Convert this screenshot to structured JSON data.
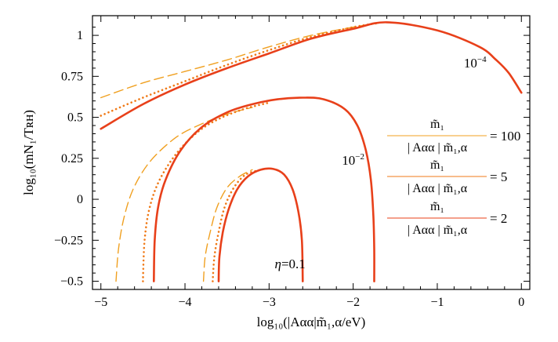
{
  "chart_data": {
    "type": "line",
    "xlabel": "log₁₀(|Aαα|m̃₁,α/eV)",
    "ylabel": "log₁₀(mN₁/Tʀʜ)",
    "xlim": [
      -5.1,
      0.1
    ],
    "ylim": [
      -0.55,
      1.12
    ],
    "x_ticks": [
      -5,
      -4,
      -3,
      -2,
      -1,
      0
    ],
    "x_tick_labels": [
      "−5",
      "−4",
      "−3",
      "−2",
      "−1",
      "0"
    ],
    "y_ticks": [
      -0.5,
      -0.25,
      0,
      0.25,
      0.5,
      0.75,
      1
    ],
    "y_tick_labels": [
      "−0.5",
      "−0.25",
      "0",
      "0.25",
      "0.5",
      "0.75",
      "1"
    ],
    "grid": false,
    "colors": {
      "ratio_100": "#f0a020",
      "ratio_5": "#f07a18",
      "ratio_2": "#e8401a"
    },
    "series": [
      {
        "ratio": "100",
        "eta": "10⁻⁴",
        "style": "dashed",
        "color": "#f0a020",
        "points": [
          [
            -5.0,
            0.62
          ],
          [
            -4.5,
            0.71
          ],
          [
            -4.0,
            0.78
          ],
          [
            -3.5,
            0.85
          ],
          [
            -3.0,
            0.93
          ],
          [
            -2.5,
            1.0
          ],
          [
            -2.0,
            1.05
          ],
          [
            -1.7,
            1.075
          ]
        ]
      },
      {
        "ratio": "5",
        "eta": "10⁻⁴",
        "style": "dotted",
        "color": "#f07a18",
        "points": [
          [
            -5.0,
            0.51
          ],
          [
            -4.5,
            0.62
          ],
          [
            -4.0,
            0.72
          ],
          [
            -3.5,
            0.82
          ],
          [
            -3.0,
            0.91
          ],
          [
            -2.5,
            0.99
          ],
          [
            -2.0,
            1.05
          ],
          [
            -1.7,
            1.075
          ]
        ]
      },
      {
        "ratio": "2",
        "eta": "10⁻⁴",
        "style": "solid",
        "color": "#e8401a",
        "points": [
          [
            -5.0,
            0.43
          ],
          [
            -4.5,
            0.58
          ],
          [
            -4.0,
            0.7
          ],
          [
            -3.5,
            0.8
          ],
          [
            -3.0,
            0.89
          ],
          [
            -2.5,
            0.98
          ],
          [
            -2.0,
            1.04
          ],
          [
            -1.6,
            1.08
          ],
          [
            -1.0,
            1.03
          ],
          [
            -0.5,
            0.93
          ],
          [
            -0.3,
            0.85
          ],
          [
            -0.15,
            0.77
          ],
          [
            0.0,
            0.65
          ]
        ]
      },
      {
        "ratio": "100",
        "eta": "10⁻²",
        "style": "dashed",
        "color": "#f0a020",
        "points": [
          [
            -4.82,
            -0.5
          ],
          [
            -4.79,
            -0.3
          ],
          [
            -4.72,
            -0.1
          ],
          [
            -4.6,
            0.08
          ],
          [
            -4.4,
            0.24
          ],
          [
            -4.1,
            0.38
          ],
          [
            -3.8,
            0.46
          ],
          [
            -3.5,
            0.52
          ],
          [
            -3.2,
            0.56
          ]
        ]
      },
      {
        "ratio": "5",
        "eta": "10⁻²",
        "style": "dotted",
        "color": "#f07a18",
        "points": [
          [
            -4.5,
            -0.5
          ],
          [
            -4.48,
            -0.25
          ],
          [
            -4.42,
            -0.05
          ],
          [
            -4.3,
            0.12
          ],
          [
            -4.1,
            0.28
          ],
          [
            -3.85,
            0.41
          ],
          [
            -3.6,
            0.49
          ],
          [
            -3.3,
            0.55
          ],
          [
            -3.0,
            0.59
          ]
        ]
      },
      {
        "ratio": "2",
        "eta": "10⁻²",
        "style": "solid",
        "color": "#e8401a",
        "points": [
          [
            -4.37,
            -0.5
          ],
          [
            -4.36,
            -0.25
          ],
          [
            -4.32,
            -0.05
          ],
          [
            -4.23,
            0.12
          ],
          [
            -4.05,
            0.3
          ],
          [
            -3.8,
            0.44
          ],
          [
            -3.5,
            0.53
          ],
          [
            -3.2,
            0.58
          ],
          [
            -2.9,
            0.61
          ],
          [
            -2.6,
            0.62
          ],
          [
            -2.35,
            0.61
          ],
          [
            -2.1,
            0.55
          ],
          [
            -1.95,
            0.45
          ],
          [
            -1.85,
            0.3
          ],
          [
            -1.79,
            0.12
          ],
          [
            -1.76,
            -0.1
          ],
          [
            -1.75,
            -0.3
          ],
          [
            -1.75,
            -0.5
          ]
        ]
      },
      {
        "ratio": "100",
        "eta": "0.1",
        "style": "dashed",
        "color": "#f0a020",
        "points": [
          [
            -3.78,
            -0.5
          ],
          [
            -3.76,
            -0.35
          ],
          [
            -3.7,
            -0.2
          ],
          [
            -3.62,
            -0.05
          ],
          [
            -3.5,
            0.07
          ],
          [
            -3.35,
            0.14
          ],
          [
            -3.2,
            0.18
          ]
        ]
      },
      {
        "ratio": "5",
        "eta": "0.1",
        "style": "dotted",
        "color": "#f07a18",
        "points": [
          [
            -3.67,
            -0.5
          ],
          [
            -3.65,
            -0.35
          ],
          [
            -3.6,
            -0.2
          ],
          [
            -3.53,
            -0.05
          ],
          [
            -3.42,
            0.07
          ],
          [
            -3.28,
            0.15
          ],
          [
            -3.1,
            0.18
          ]
        ]
      },
      {
        "ratio": "2",
        "eta": "0.1",
        "style": "solid",
        "color": "#e8401a",
        "points": [
          [
            -3.6,
            -0.5
          ],
          [
            -3.59,
            -0.35
          ],
          [
            -3.55,
            -0.2
          ],
          [
            -3.48,
            -0.06
          ],
          [
            -3.38,
            0.06
          ],
          [
            -3.25,
            0.14
          ],
          [
            -3.1,
            0.18
          ],
          [
            -2.95,
            0.185
          ],
          [
            -2.82,
            0.15
          ],
          [
            -2.72,
            0.06
          ],
          [
            -2.65,
            -0.08
          ],
          [
            -2.61,
            -0.25
          ],
          [
            -2.6,
            -0.5
          ]
        ]
      }
    ],
    "annotations": [
      {
        "text_base": "10",
        "text_exp": "−4",
        "x": -0.55,
        "y": 0.805
      },
      {
        "text_base": "10",
        "text_exp": "−2",
        "x": -2.0,
        "y": 0.21
      },
      {
        "text": "η=0.1",
        "x": -2.75,
        "y": -0.42
      }
    ],
    "legend": {
      "placement": "right",
      "numerator": "m̃₁",
      "denominator": "| Aαα | m̃₁,α",
      "items": [
        {
          "value": "= 100",
          "color": "#f0a020"
        },
        {
          "value": "= 5",
          "color": "#f07a18"
        },
        {
          "value": "= 2",
          "color": "#e8401a"
        }
      ]
    }
  }
}
